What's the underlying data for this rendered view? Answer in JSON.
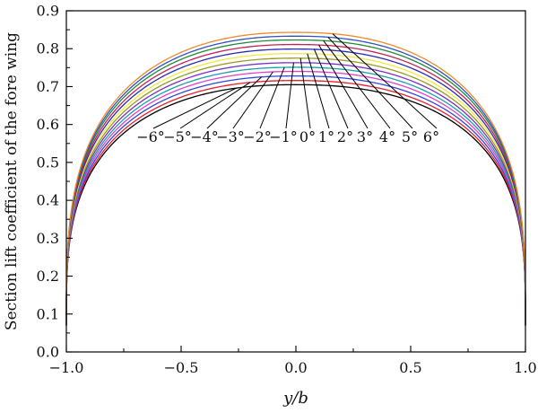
{
  "chart_data": {
    "type": "line",
    "xlabel": "y/b",
    "ylabel": "Section lift coefficient of the fore wing",
    "xlim": [
      -1.0,
      1.0
    ],
    "ylim": [
      0.0,
      0.9
    ],
    "x_ticks": [
      "−1.0",
      "−0.5",
      "0.0",
      "0.5",
      "1.0"
    ],
    "y_ticks": [
      "0.0",
      "0.1",
      "0.2",
      "0.3",
      "0.4",
      "0.5",
      "0.6",
      "0.7",
      "0.8",
      "0.9"
    ],
    "grid": false,
    "legend": "none",
    "series": [
      {
        "name": "−6°",
        "peak": 0.705,
        "color": "#000000"
      },
      {
        "name": "−5°",
        "peak": 0.716,
        "color": "#e8202a"
      },
      {
        "name": "−4°",
        "peak": 0.728,
        "color": "#2f45d8"
      },
      {
        "name": "−3°",
        "peak": 0.74,
        "color": "#e040c8"
      },
      {
        "name": "−2°",
        "peak": 0.751,
        "color": "#1aa0a8"
      },
      {
        "name": "−1°",
        "peak": 0.763,
        "color": "#7b2fc4"
      },
      {
        "name": "0°",
        "peak": 0.775,
        "color": "#9a9a20"
      },
      {
        "name": "1°",
        "peak": 0.787,
        "color": "#f2e840"
      },
      {
        "name": "2°",
        "peak": 0.799,
        "color": "#2a2ab8"
      },
      {
        "name": "3°",
        "peak": 0.811,
        "color": "#c81e5a"
      },
      {
        "name": "4°",
        "peak": 0.823,
        "color": "#1f8a3a"
      },
      {
        "name": "5°",
        "peak": 0.833,
        "color": "#3050c0"
      },
      {
        "name": "6°",
        "peak": 0.843,
        "color": "#f08a28"
      }
    ]
  }
}
